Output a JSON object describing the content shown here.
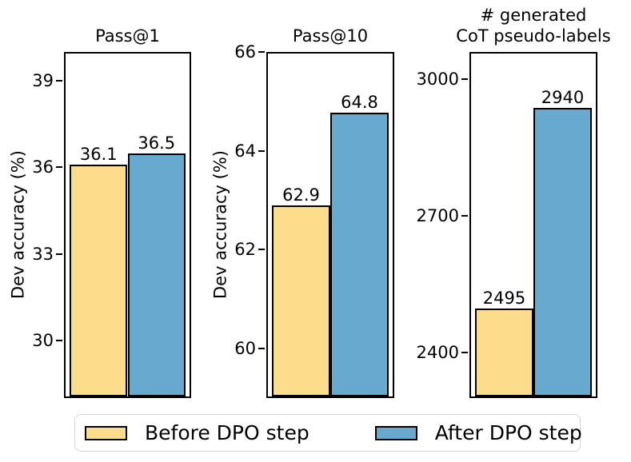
{
  "figure": {
    "legend": {
      "items": [
        {
          "label": "Before DPO step",
          "color": "#FCDD8C"
        },
        {
          "label": "After DPO step",
          "color": "#68A9CF"
        }
      ]
    }
  },
  "chart_data": [
    {
      "type": "bar",
      "title": "Pass@1",
      "ylabel": "Dev accuracy (%)",
      "ylim": [
        28,
        40
      ],
      "yticks": [
        30,
        33,
        36,
        39
      ],
      "categories": [
        "Before DPO step",
        "After DPO step"
      ],
      "values": [
        36.1,
        36.5
      ],
      "bar_labels": [
        "36.1",
        "36.5"
      ],
      "colors": [
        "#FCDD8C",
        "#68A9CF"
      ],
      "edge_color": "#000000",
      "grid": false,
      "legend_position": "bottom-outside"
    },
    {
      "type": "bar",
      "title": "Pass@10",
      "ylabel": "Dev accuracy (%)",
      "ylim": [
        59,
        66
      ],
      "yticks": [
        60,
        62,
        64,
        66
      ],
      "categories": [
        "Before DPO step",
        "After DPO step"
      ],
      "values": [
        62.9,
        64.8
      ],
      "bar_labels": [
        "62.9",
        "64.8"
      ],
      "colors": [
        "#FCDD8C",
        "#68A9CF"
      ],
      "edge_color": "#000000",
      "grid": false,
      "legend_position": "bottom-outside"
    },
    {
      "type": "bar",
      "title": "# generated\nCoT pseudo-labels",
      "ylabel": "",
      "ylim": [
        2300,
        3060
      ],
      "yticks": [
        2400,
        2700,
        3000
      ],
      "categories": [
        "Before DPO step",
        "After DPO step"
      ],
      "values": [
        2495,
        2940
      ],
      "bar_labels": [
        "2495",
        "2940"
      ],
      "colors": [
        "#FCDD8C",
        "#68A9CF"
      ],
      "edge_color": "#000000",
      "grid": false,
      "legend_position": "bottom-outside"
    }
  ]
}
